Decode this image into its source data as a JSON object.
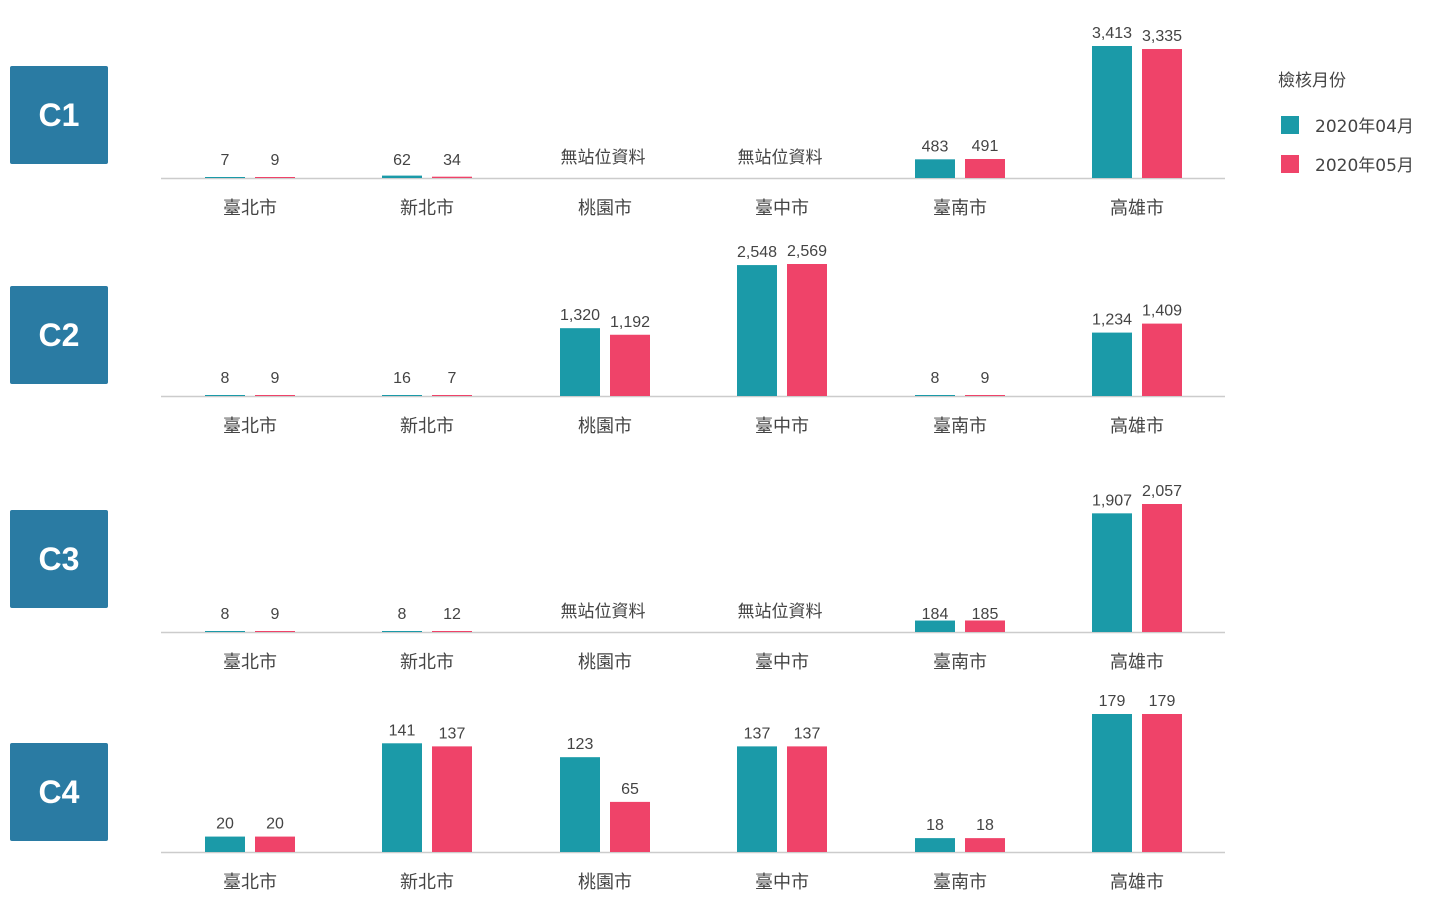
{
  "colors": {
    "apr": "#1b9aa8",
    "may": "#ef4369",
    "label_bg": "#2a7ba3",
    "axis": "#cccccc",
    "text": "#444444"
  },
  "legend": {
    "title": "檢核月份",
    "items": [
      {
        "label": "2020年04月",
        "color": "#1b9aa8"
      },
      {
        "label": "2020年05月",
        "color": "#ef4369"
      }
    ]
  },
  "chart_data": [
    {
      "type": "bar",
      "title": "C1",
      "categories": [
        "臺北市",
        "新北市",
        "桃園市",
        "臺中市",
        "臺南市",
        "高雄市"
      ],
      "series": [
        {
          "name": "2020年04月",
          "values": [
            7,
            62,
            null,
            null,
            483,
            3413
          ],
          "labels": [
            "7",
            "62",
            "",
            "",
            "483",
            "3,413"
          ]
        },
        {
          "name": "2020年05月",
          "values": [
            9,
            34,
            null,
            null,
            491,
            3335
          ],
          "labels": [
            "9",
            "34",
            "",
            "",
            "491",
            "3,335"
          ]
        }
      ],
      "no_data_label": "無站位資料",
      "ylim": [
        0,
        3413
      ]
    },
    {
      "type": "bar",
      "title": "C2",
      "categories": [
        "臺北市",
        "新北市",
        "桃園市",
        "臺中市",
        "臺南市",
        "高雄市"
      ],
      "series": [
        {
          "name": "2020年04月",
          "values": [
            8,
            16,
            1320,
            2548,
            8,
            1234
          ],
          "labels": [
            "8",
            "16",
            "1,320",
            "2,548",
            "8",
            "1,234"
          ]
        },
        {
          "name": "2020年05月",
          "values": [
            9,
            7,
            1192,
            2569,
            9,
            1409
          ],
          "labels": [
            "9",
            "7",
            "1,192",
            "2,569",
            "9",
            "1,409"
          ]
        }
      ],
      "no_data_label": "無站位資料",
      "ylim": [
        0,
        2569
      ]
    },
    {
      "type": "bar",
      "title": "C3",
      "categories": [
        "臺北市",
        "新北市",
        "桃園市",
        "臺中市",
        "臺南市",
        "高雄市"
      ],
      "series": [
        {
          "name": "2020年04月",
          "values": [
            8,
            8,
            null,
            null,
            184,
            1907
          ],
          "labels": [
            "8",
            "8",
            "",
            "",
            "184",
            "1,907"
          ]
        },
        {
          "name": "2020年05月",
          "values": [
            9,
            12,
            null,
            null,
            185,
            2057
          ],
          "labels": [
            "9",
            "12",
            "",
            "",
            "185",
            "2,057"
          ]
        }
      ],
      "no_data_label": "無站位資料",
      "ylim": [
        0,
        2057
      ]
    },
    {
      "type": "bar",
      "title": "C4",
      "categories": [
        "臺北市",
        "新北市",
        "桃園市",
        "臺中市",
        "臺南市",
        "高雄市"
      ],
      "series": [
        {
          "name": "2020年04月",
          "values": [
            20,
            141,
            123,
            137,
            18,
            179
          ],
          "labels": [
            "20",
            "141",
            "123",
            "137",
            "18",
            "179"
          ]
        },
        {
          "name": "2020年05月",
          "values": [
            20,
            137,
            65,
            137,
            18,
            179
          ],
          "labels": [
            "20",
            "137",
            "65",
            "137",
            "18",
            "179"
          ]
        }
      ],
      "no_data_label": "無站位資料",
      "ylim": [
        0,
        179
      ]
    }
  ]
}
